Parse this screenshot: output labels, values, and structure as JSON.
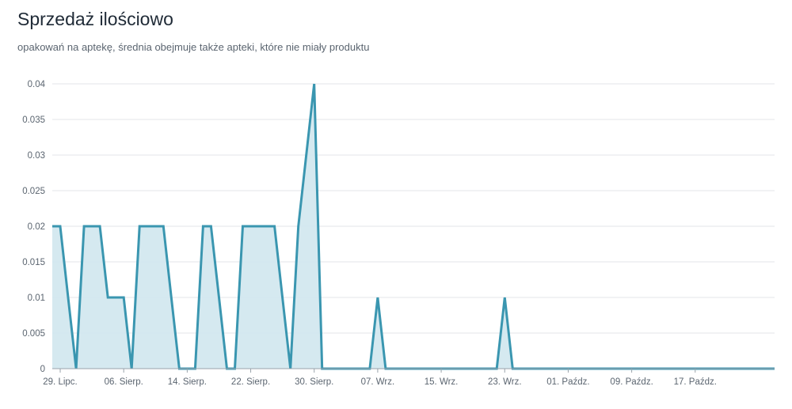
{
  "header": {
    "title": "Sprzedaż ilościowo",
    "subtitle": "opakowań na aptekę, średnia obejmuje także apteki, które nie miały produktu"
  },
  "colors": {
    "line": "#3a96b0",
    "fill": "#d3e8ef",
    "grid": "#e3e6ea",
    "axis": "#9aa3ab",
    "text": "#5b6570"
  },
  "chart_data": {
    "type": "area",
    "title": "Sprzedaż ilościowo",
    "subtitle": "opakowań na aptekę, średnia obejmuje także apteki, które nie miały produktu",
    "xlabel": "",
    "ylabel": "",
    "ylim": [
      0,
      0.04
    ],
    "yticks": [
      0,
      0.005,
      0.01,
      0.015,
      0.02,
      0.025,
      0.03,
      0.035,
      0.04
    ],
    "ytick_labels": [
      "0",
      "0.005",
      "0.01",
      "0.015",
      "0.02",
      "0.025",
      "0.03",
      "0.035",
      "0.04"
    ],
    "xlim": [
      "2024-07-28",
      "2024-10-27"
    ],
    "xticks": [
      {
        "date": "2024-07-29",
        "label": "29. Lipc."
      },
      {
        "date": "2024-08-06",
        "label": "06. Sierp."
      },
      {
        "date": "2024-08-14",
        "label": "14. Sierp."
      },
      {
        "date": "2024-08-22",
        "label": "22. Sierp."
      },
      {
        "date": "2024-08-30",
        "label": "30. Sierp."
      },
      {
        "date": "2024-09-07",
        "label": "07. Wrz."
      },
      {
        "date": "2024-09-15",
        "label": "15. Wrz."
      },
      {
        "date": "2024-09-23",
        "label": "23. Wrz."
      },
      {
        "date": "2024-10-01",
        "label": "01. Paźdz."
      },
      {
        "date": "2024-10-09",
        "label": "09. Paźdz."
      },
      {
        "date": "2024-10-17",
        "label": "17. Paźdz."
      }
    ],
    "grid": true,
    "legend": "none",
    "series": [
      {
        "x": [
          "2024-07-28",
          "2024-07-29",
          "2024-07-30",
          "2024-07-31",
          "2024-08-01",
          "2024-08-02",
          "2024-08-03",
          "2024-08-04",
          "2024-08-05",
          "2024-08-06",
          "2024-08-07",
          "2024-08-08",
          "2024-08-09",
          "2024-08-10",
          "2024-08-11",
          "2024-08-12",
          "2024-08-13",
          "2024-08-14",
          "2024-08-15",
          "2024-08-16",
          "2024-08-17",
          "2024-08-18",
          "2024-08-19",
          "2024-08-20",
          "2024-08-21",
          "2024-08-22",
          "2024-08-23",
          "2024-08-24",
          "2024-08-25",
          "2024-08-26",
          "2024-08-27",
          "2024-08-28",
          "2024-08-29",
          "2024-08-30",
          "2024-08-31",
          "2024-09-01",
          "2024-09-02",
          "2024-09-03",
          "2024-09-04",
          "2024-09-05",
          "2024-09-06",
          "2024-09-07",
          "2024-09-08",
          "2024-09-09",
          "2024-09-10",
          "2024-09-11",
          "2024-09-12",
          "2024-09-13",
          "2024-09-14",
          "2024-09-15",
          "2024-09-16",
          "2024-09-17",
          "2024-09-18",
          "2024-09-19",
          "2024-09-20",
          "2024-09-21",
          "2024-09-22",
          "2024-09-23",
          "2024-09-24",
          "2024-09-25",
          "2024-10-27"
        ],
        "values": [
          0.02,
          0.02,
          0.01,
          0,
          0.02,
          0.02,
          0.02,
          0.01,
          0.01,
          0.01,
          0,
          0.02,
          0.02,
          0.02,
          0.02,
          0.01,
          0,
          0,
          0,
          0.02,
          0.02,
          0.01,
          0,
          0,
          0.02,
          0.02,
          0.02,
          0.02,
          0.02,
          0.01,
          0,
          0.02,
          0.03,
          0.04,
          0,
          0,
          0,
          0,
          0,
          0,
          0,
          0.01,
          0,
          0,
          0,
          0,
          0,
          0,
          0,
          0,
          0,
          0,
          0,
          0,
          0,
          0,
          0,
          0.01,
          0,
          0,
          0
        ]
      }
    ]
  }
}
